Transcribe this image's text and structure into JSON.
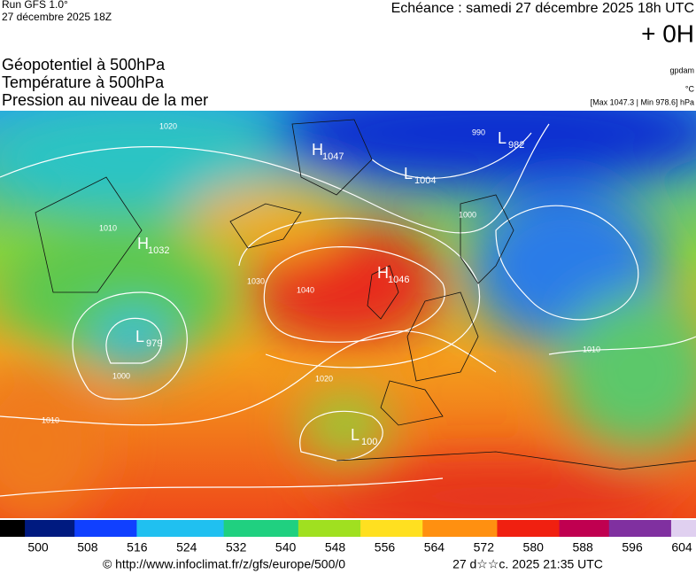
{
  "header": {
    "run": "Run GFS 1.0°",
    "run_date": "27 décembre 2025 18Z",
    "echeance": "Echéance : samedi 27 décembre 2025 18h UTC",
    "offset": "+ 0H"
  },
  "fields": [
    "Géopotentiel à 500hPa",
    "Température à 500hPa",
    "Pression au niveau de la mer"
  ],
  "units": {
    "geopotential": "gpdam",
    "temperature": "°C",
    "pressure": "[Max 1047.3 | Min 978.6] hPa"
  },
  "pressure_centers": [
    {
      "letter": "H",
      "value": "1047"
    },
    {
      "letter": "L",
      "value": "1004"
    },
    {
      "letter": "L",
      "value": "982"
    },
    {
      "letter": "H",
      "value": "1032"
    },
    {
      "letter": "H",
      "value": "1046"
    },
    {
      "letter": "L",
      "value": "979"
    },
    {
      "letter": "L",
      "value": "100"
    }
  ],
  "isobar_labels": [
    "1020",
    "1010",
    "1000",
    "990",
    "1030",
    "1040",
    "1020",
    "1010",
    "1000",
    "1010"
  ],
  "color_scale": {
    "labels": [
      500,
      508,
      516,
      524,
      532,
      540,
      548,
      556,
      564,
      572,
      580,
      588,
      596,
      604
    ]
  },
  "footer": {
    "source": "© http://www.infoclimat.fr/z/gfs/europe/500/0",
    "timestamp": "27 d☆☆c. 2025 21:35 UTC"
  }
}
